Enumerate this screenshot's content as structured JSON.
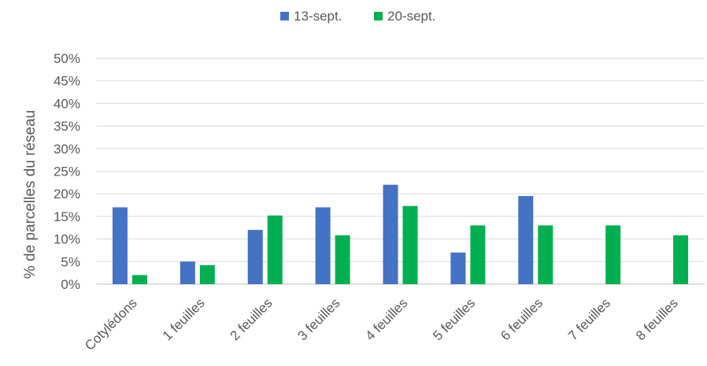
{
  "chart_data": {
    "type": "bar",
    "ylabel": "% de parcelles du réseau",
    "xlabel": "",
    "title": "",
    "categories": [
      "Cotylédons",
      "1 feuilles",
      "2 feuilles",
      "3 feuilles",
      "4 feuilles",
      "5 feuilles",
      "6 feuilles",
      "7 feuilles",
      "8 feuilles"
    ],
    "series": [
      {
        "name": "13-sept.",
        "color": "#4472C4",
        "values": [
          17,
          5,
          12,
          17,
          22,
          7,
          19.5,
          0,
          0
        ]
      },
      {
        "name": "20-sept.",
        "color": "#00B050",
        "values": [
          2,
          4.2,
          15.2,
          10.8,
          17.3,
          13,
          13,
          13,
          10.8
        ]
      }
    ],
    "ylim": [
      0,
      50
    ],
    "ytick_step": 5,
    "ytick_labels": [
      "0%",
      "5%",
      "10%",
      "15%",
      "20%",
      "25%",
      "30%",
      "35%",
      "40%",
      "45%",
      "50%"
    ],
    "grid": true,
    "legend_position": "top-center"
  }
}
